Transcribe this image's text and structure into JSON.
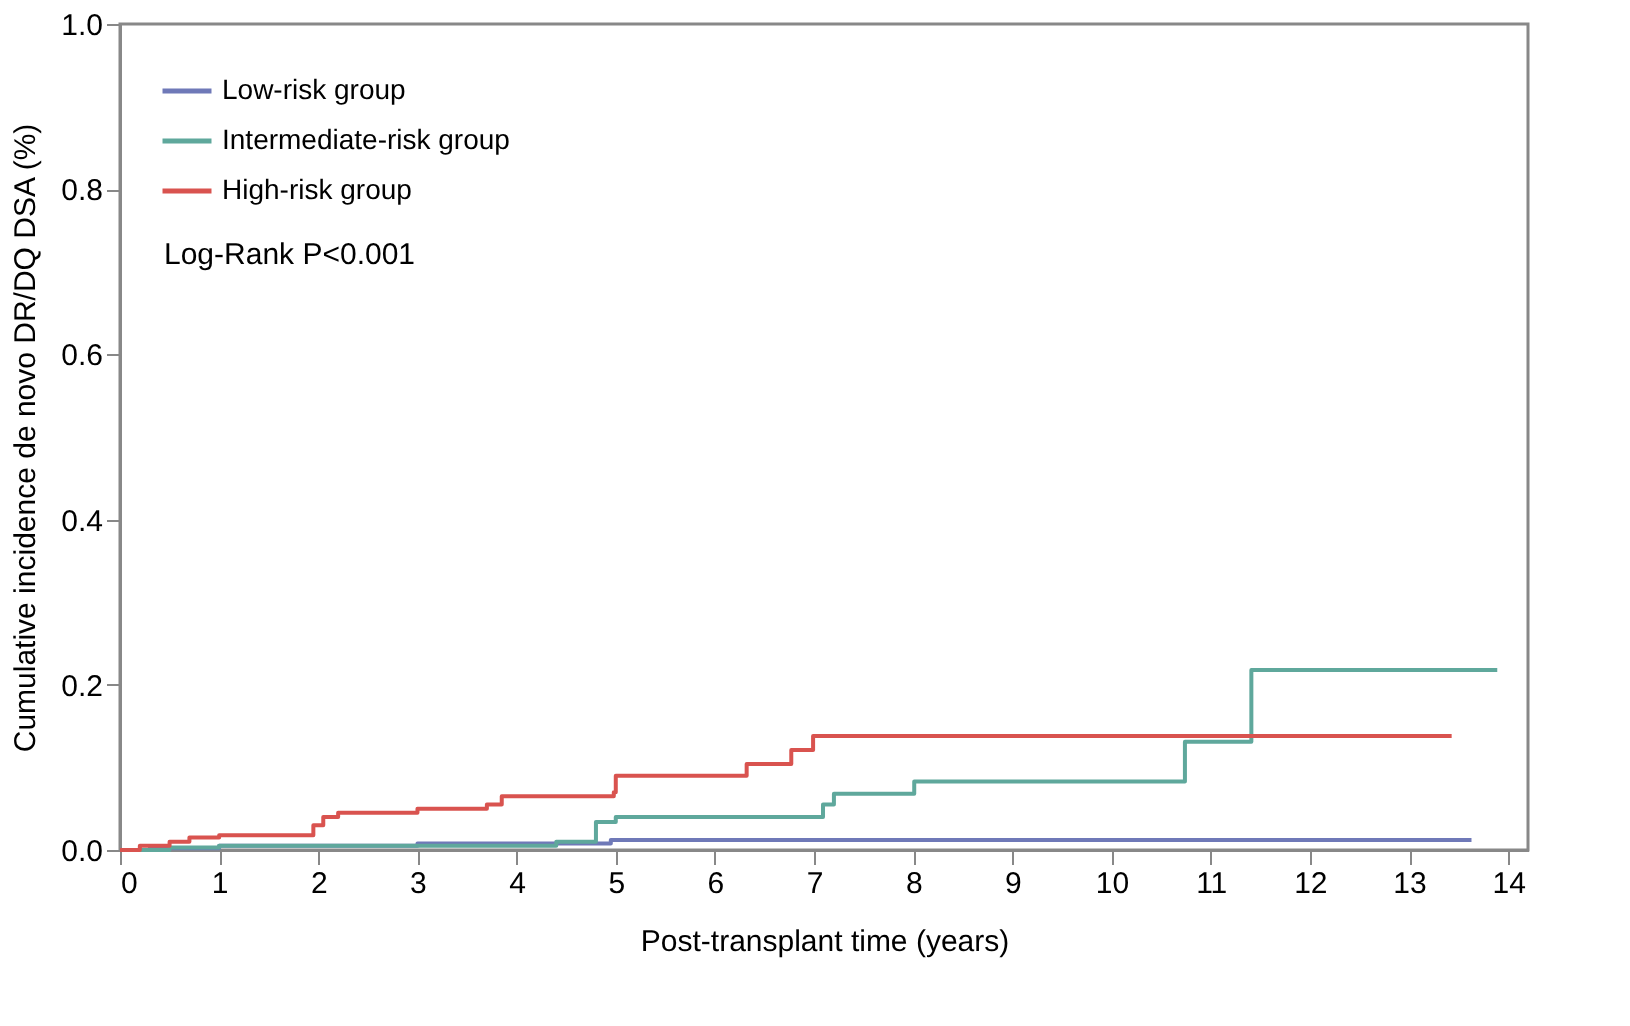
{
  "chart_data": {
    "type": "step",
    "xlabel": "Post-transplant time (years)",
    "ylabel": "Cumulative incidence de novo DR/DQ DSA (%)",
    "xlim": [
      0,
      14.2
    ],
    "ylim": [
      0,
      1.0
    ],
    "xticks": [
      0,
      1,
      2,
      3,
      4,
      5,
      6,
      7,
      8,
      9,
      10,
      11,
      12,
      13,
      14
    ],
    "yticks": [
      {
        "value": 0,
        "label": "0.0"
      },
      {
        "value": 0.2,
        "label": "0.2"
      },
      {
        "value": 0.4,
        "label": "0.4"
      },
      {
        "value": 0.6,
        "label": "0.6"
      },
      {
        "value": 0.8,
        "label": "0.8"
      },
      {
        "value": 1.0,
        "label": "1.0"
      }
    ],
    "grid": false,
    "legend": "top left",
    "line_style": "solid",
    "marker": "none",
    "annotations": [
      "Log-Rank P<0.001"
    ],
    "series": [
      {
        "name": "Low-risk group",
        "color": "#6f79b8",
        "x": [
          0,
          0.3,
          1.0,
          3.0,
          4.95,
          13.63
        ],
        "values": [
          0,
          0.002,
          0.005,
          0.008,
          0.012,
          0.012
        ]
      },
      {
        "name": "Intermediate-risk group",
        "color": "#5fa89c",
        "x": [
          0,
          0.5,
          1.0,
          4.4,
          4.8,
          5.0,
          7.09,
          7.2,
          8.01,
          10.74,
          11.41,
          13.89
        ],
        "values": [
          0,
          0.003,
          0.005,
          0.01,
          0.034,
          0.04,
          0.055,
          0.068,
          0.083,
          0.131,
          0.218,
          0.218
        ]
      },
      {
        "name": "High-risk group",
        "color": "#d9534f",
        "x": [
          0,
          0.2,
          0.5,
          0.7,
          1.0,
          1.95,
          2.05,
          2.2,
          3.0,
          3.7,
          3.85,
          4.98,
          5.0,
          6.32,
          6.77,
          6.99,
          13.43
        ],
        "values": [
          0,
          0.005,
          0.01,
          0.015,
          0.018,
          0.03,
          0.04,
          0.045,
          0.05,
          0.055,
          0.065,
          0.07,
          0.09,
          0.104,
          0.121,
          0.138,
          0.138
        ]
      }
    ]
  }
}
